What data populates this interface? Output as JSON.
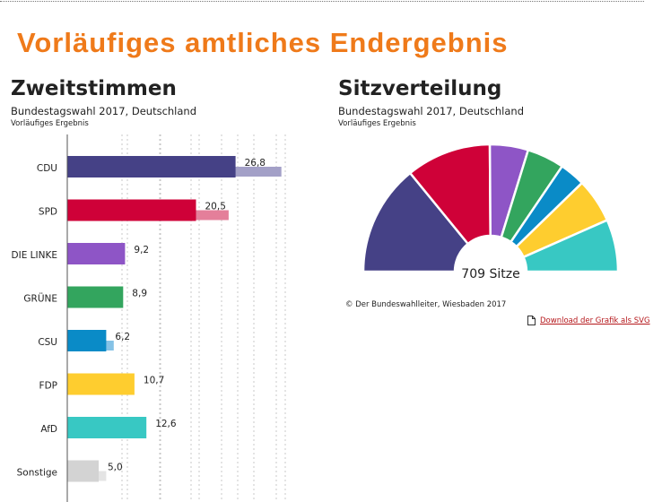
{
  "page": {
    "title": "Vorläufiges amtliches Endergebnis",
    "copyright": "© Der Bundeswahlleiter, Wiesbaden 2017",
    "download_label": "Download der Grafik als SVG",
    "download_icon": "document-icon"
  },
  "chart_data": [
    {
      "type": "bar",
      "orientation": "horizontal",
      "title": "Zweitstimmen",
      "subtitle": "Bundestagswahl 2017, Deutschland",
      "note": "Vorläufiges Ergebnis",
      "xlim": [
        0,
        50
      ],
      "grid": true,
      "categories": [
        "CDU",
        "SPD",
        "DIE LINKE",
        "GRÜNE",
        "CSU",
        "FDP",
        "AfD",
        "Sonstige"
      ],
      "series": [
        {
          "values": [
            26.8,
            20.5,
            9.2,
            8.9,
            6.2,
            10.7,
            12.6,
            5.0
          ],
          "labels": [
            "26,8",
            "20,5",
            "9,2",
            "8,9",
            "6,2",
            "10,7",
            "12,6",
            "5,0"
          ]
        },
        {
          "values": [
            34.1,
            25.7,
            8.6,
            8.4,
            7.4,
            4.8,
            4.7,
            6.2
          ]
        }
      ],
      "colors": [
        "#454186",
        "#cf0138",
        "#8e55c6",
        "#33a55e",
        "#0a8bc7",
        "#fecd2f",
        "#38c8c3",
        "#d3d3d3"
      ],
      "colors_light": [
        "#a3a0c7",
        "#e47f9a",
        "#c8aae6",
        "#99d0a9",
        "#85c2e6",
        "#fde8a4",
        "#a2e4e1",
        "#e4e4e4"
      ]
    },
    {
      "type": "pie",
      "variant": "semicircle",
      "title": "Sitzverteilung",
      "subtitle": "Bundestagswahl 2017, Deutschland",
      "note": "Vorläufiges Ergebnis",
      "center_label": "709 Sitze",
      "categories": [
        "CDU",
        "SPD",
        "DIE LINKE",
        "GRÜNE",
        "CSU",
        "FDP",
        "AfD"
      ],
      "values": [
        200,
        153,
        69,
        67,
        46,
        80,
        94
      ],
      "colors": [
        "#454186",
        "#cf0138",
        "#8e55c6",
        "#33a55e",
        "#0a8bc7",
        "#fecd2f",
        "#38c8c3"
      ]
    }
  ]
}
